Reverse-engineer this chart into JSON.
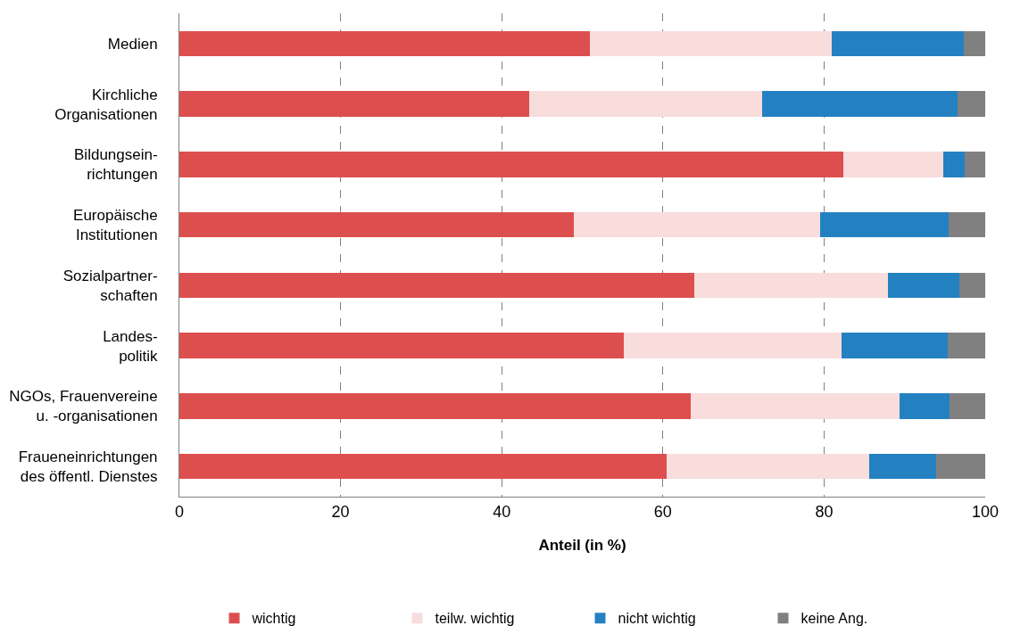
{
  "chart_data": {
    "type": "bar",
    "orientation": "horizontal",
    "stacked": true,
    "xlabel": "Anteil (in %)",
    "categories": [
      "Medien",
      "Kirchliche\nOrganisationen",
      "Bildungsein-\nrichtungen",
      "Europäische\nInstitutionen",
      "Sozialpartner-\nschaften",
      "Landes-\npolitik",
      "NGOs, Frauenvereine\nu. -organisationen",
      "Fraueneinrichtungen\ndes öffentl. Dienstes"
    ],
    "series": [
      {
        "name": "wichtig",
        "color": "#dd4f4e",
        "values": [
          50.9,
          43.4,
          82.4,
          48.9,
          63.9,
          55.2,
          63.5,
          60.5
        ]
      },
      {
        "name": "teilw. wichtig",
        "color": "#f9dcdc",
        "values": [
          30.1,
          28.9,
          12.4,
          30.6,
          24.0,
          27.0,
          25.9,
          25.1
        ]
      },
      {
        "name": "nicht wichtig",
        "color": "#2481c1",
        "values": [
          16.3,
          24.3,
          2.6,
          16.0,
          8.9,
          13.1,
          6.2,
          8.3
        ]
      },
      {
        "name": "keine Ang.",
        "color": "#808080",
        "values": [
          2.7,
          3.4,
          2.6,
          4.5,
          3.2,
          4.7,
          4.4,
          6.1
        ]
      }
    ],
    "xlim": [
      0,
      100
    ],
    "xticks": [
      0,
      20,
      40,
      60,
      80,
      100
    ],
    "grid": "x",
    "legend": "bottom"
  }
}
